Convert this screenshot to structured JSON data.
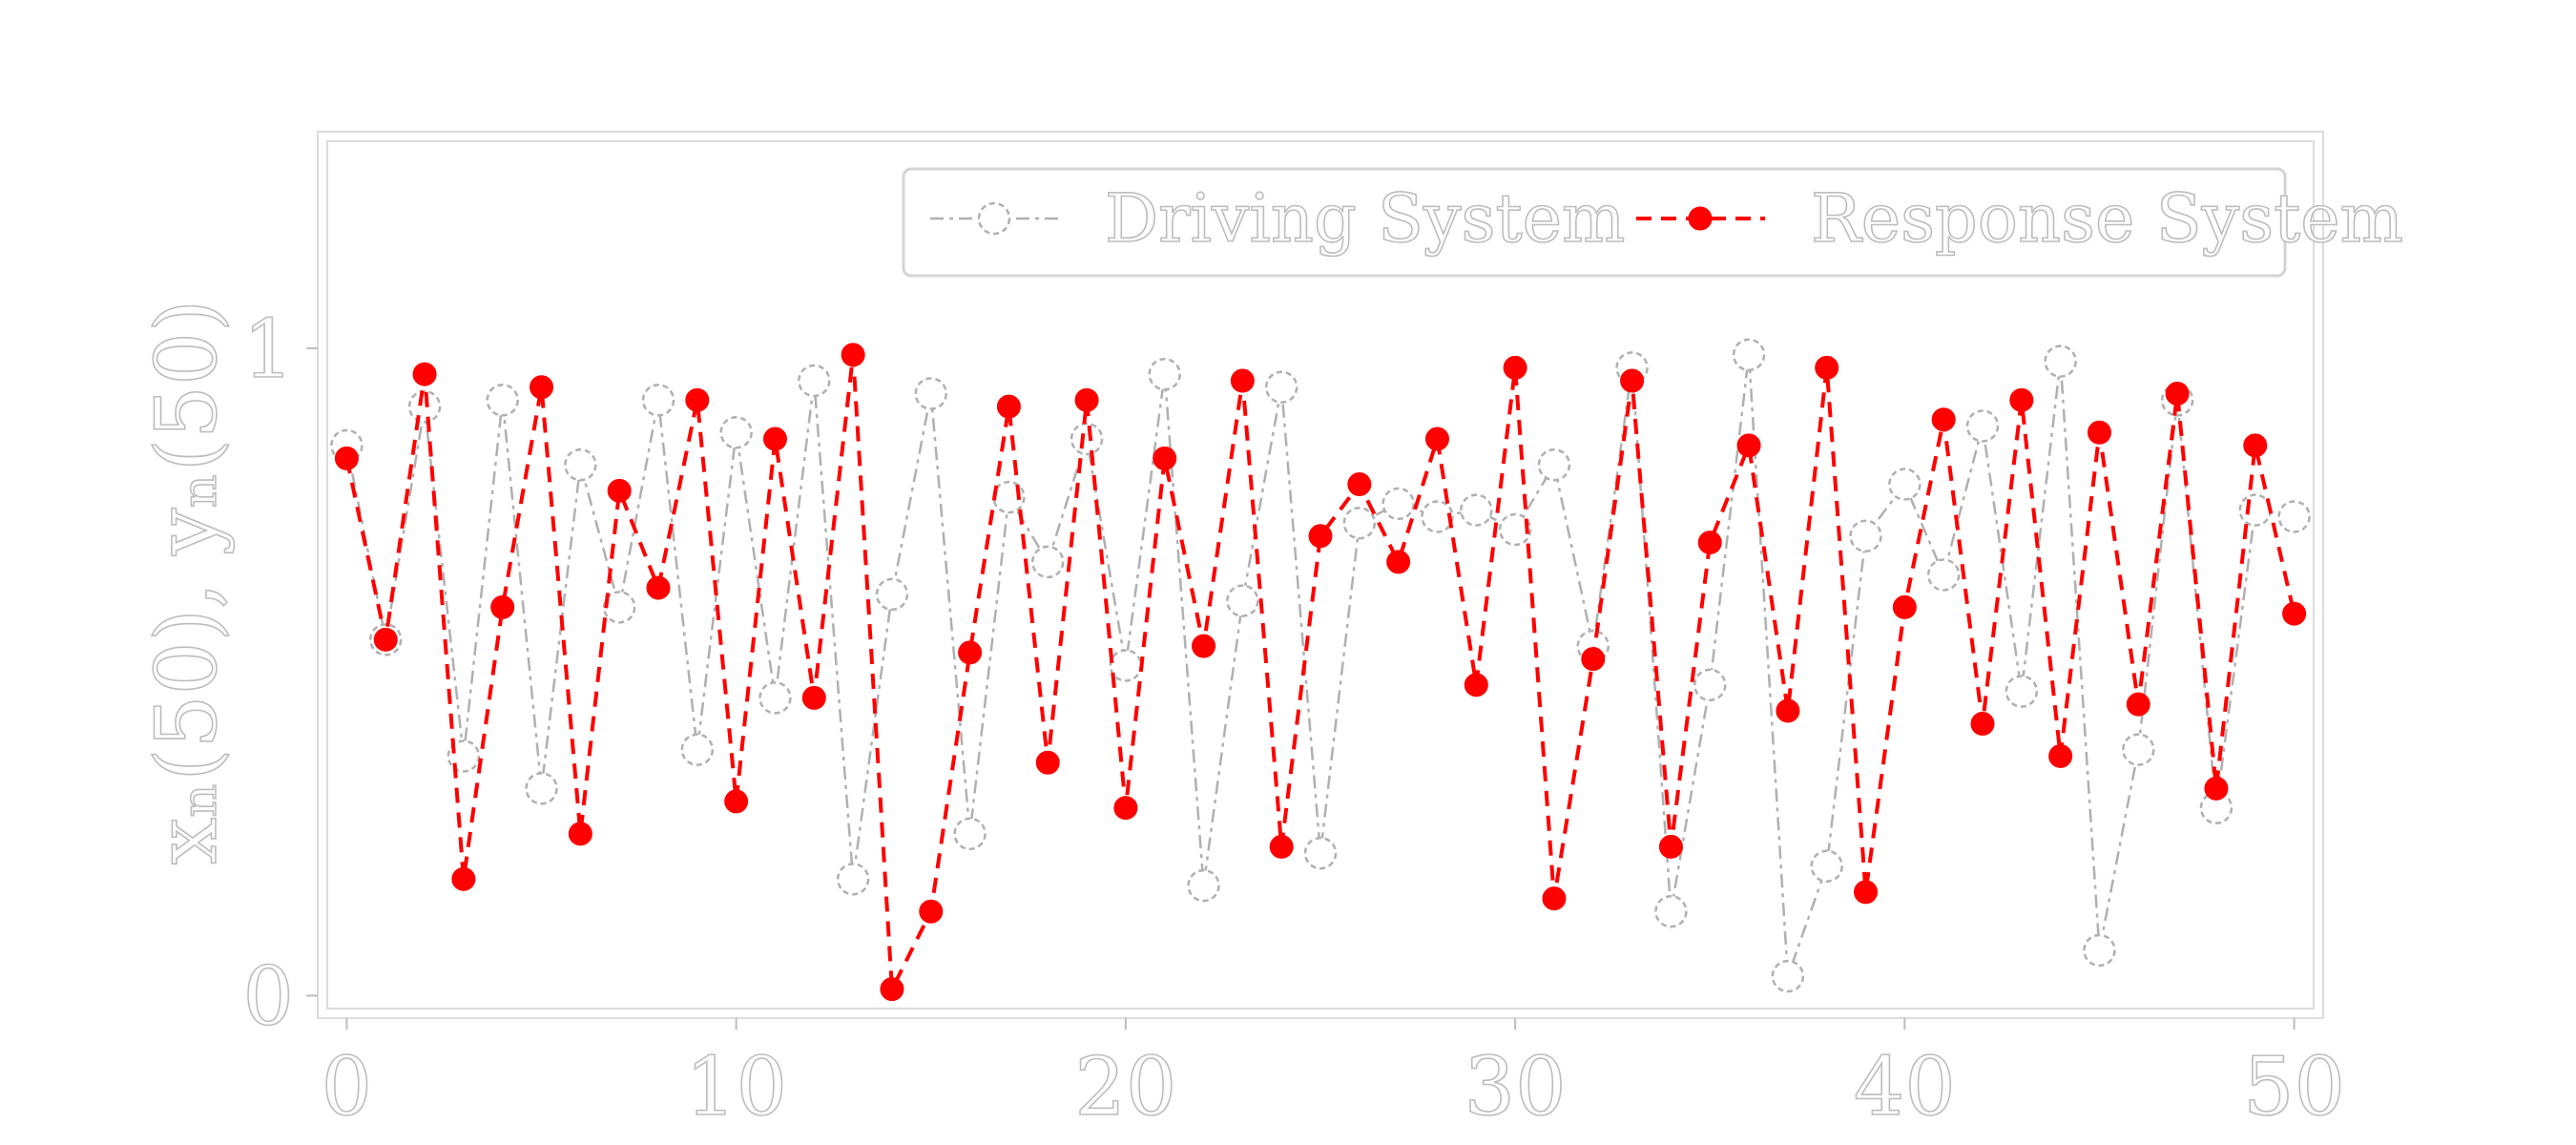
{
  "chart_data": {
    "type": "line",
    "title": "",
    "xlabel": "",
    "ylabel": "xₙ(50), yₙ(50)",
    "xlim": [
      -0.5,
      50.5
    ],
    "ylim": [
      -0.02,
      1.32
    ],
    "xticks": [
      0,
      10,
      20,
      30,
      40,
      50
    ],
    "xtick_labels": [
      "0",
      "10",
      "20",
      "30",
      "40",
      "50"
    ],
    "yticks": [
      0,
      1
    ],
    "ytick_labels": [
      "0",
      "1"
    ],
    "grid": false,
    "legend_position": "top-right",
    "x": [
      0,
      1,
      2,
      3,
      4,
      5,
      6,
      7,
      8,
      9,
      10,
      11,
      12,
      13,
      14,
      15,
      16,
      17,
      18,
      19,
      20,
      21,
      22,
      23,
      24,
      25,
      26,
      27,
      28,
      29,
      30,
      31,
      32,
      33,
      34,
      35,
      36,
      37,
      38,
      39,
      40,
      41,
      42,
      43,
      44,
      45,
      46,
      47,
      48,
      49,
      50
    ],
    "series": [
      {
        "name": "Driving System",
        "color": "#b0b0b0",
        "marker": "open-circle",
        "line_style": "dash-dot",
        "values": [
          0.85,
          0.55,
          0.91,
          0.37,
          0.92,
          0.32,
          0.82,
          0.6,
          0.92,
          0.38,
          0.87,
          0.46,
          0.95,
          0.18,
          0.62,
          0.93,
          0.25,
          0.77,
          0.67,
          0.86,
          0.51,
          0.96,
          0.17,
          0.61,
          0.94,
          0.22,
          0.73,
          0.76,
          0.74,
          0.75,
          0.72,
          0.82,
          0.54,
          0.97,
          0.13,
          0.48,
          0.99,
          0.03,
          0.2,
          0.71,
          0.79,
          0.65,
          0.88,
          0.47,
          0.98,
          0.07,
          0.38,
          0.92,
          0.29,
          0.75,
          0.74
        ]
      },
      {
        "name": "Response System",
        "color": "#ff0000",
        "marker": "filled-circle",
        "line_style": "dashed",
        "values": [
          0.83,
          0.55,
          0.96,
          0.18,
          0.6,
          0.94,
          0.25,
          0.78,
          0.63,
          0.92,
          0.3,
          0.86,
          0.46,
          0.99,
          0.01,
          0.13,
          0.53,
          0.91,
          0.36,
          0.92,
          0.29,
          0.83,
          0.54,
          0.95,
          0.23,
          0.71,
          0.79,
          0.67,
          0.86,
          0.48,
          0.97,
          0.15,
          0.52,
          0.95,
          0.23,
          0.7,
          0.85,
          0.44,
          0.97,
          0.16,
          0.6,
          0.89,
          0.42,
          0.92,
          0.37,
          0.87,
          0.45,
          0.93,
          0.32,
          0.85,
          0.59
        ]
      }
    ]
  }
}
